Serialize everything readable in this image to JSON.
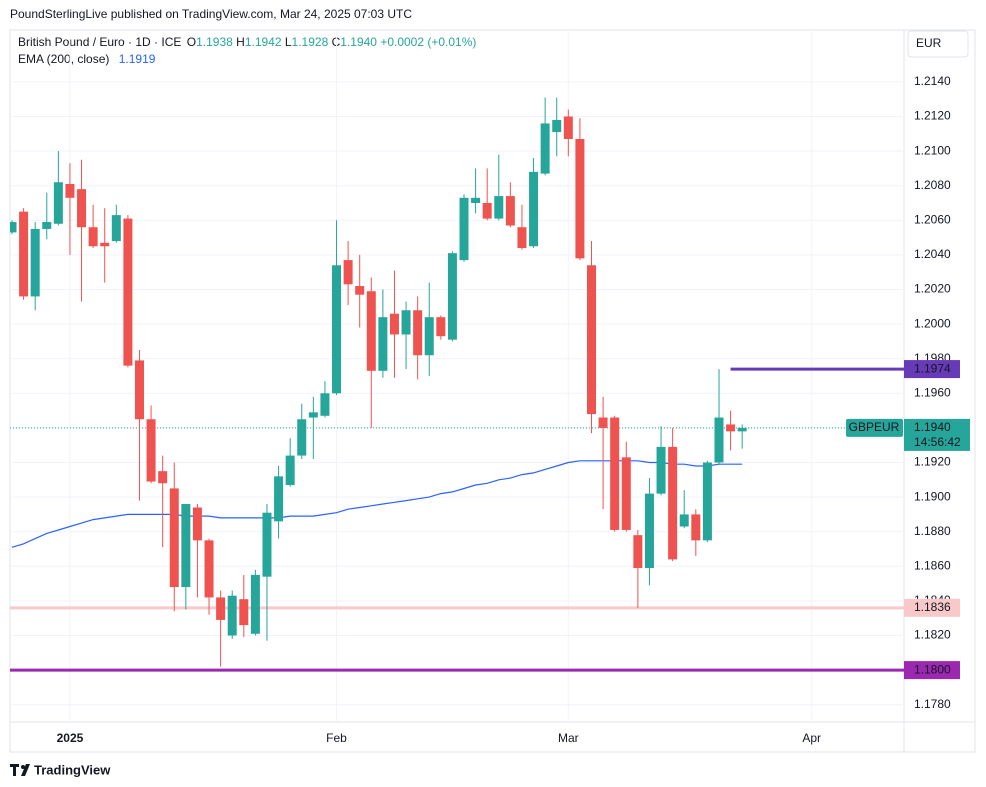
{
  "chart_data": {
    "type": "candlestick",
    "attribution": "PoundSterlingLive published on TradingView.com, Mar 24, 2025 07:03 UTC",
    "symbol_title": "British Pound / Euro · 1D · ICE",
    "ohlc_legend": [
      {
        "key": "O",
        "value": "1.1938"
      },
      {
        "key": "H",
        "value": "1.1942"
      },
      {
        "key": "L",
        "value": "1.1928"
      },
      {
        "key": "C",
        "value": "1.1940"
      }
    ],
    "change": "+0.0002 (+0.01%)",
    "currency": "EUR",
    "brand": "TradingView",
    "up_color": "#26a69a",
    "down_color": "#ef5350",
    "categories": [
      null,
      null,
      null,
      null,
      null,
      "2025",
      null,
      null,
      null,
      null,
      null,
      null,
      null,
      null,
      null,
      null,
      null,
      null,
      null,
      null,
      null,
      null,
      null,
      null,
      null,
      null,
      null,
      null,
      "Feb",
      null,
      null,
      null,
      null,
      null,
      null,
      null,
      null,
      null,
      null,
      null,
      null,
      null,
      null,
      null,
      null,
      null,
      null,
      null,
      "Mar",
      null,
      null,
      null,
      null,
      null,
      null,
      null,
      null,
      null,
      null,
      null,
      null,
      null,
      null,
      null,
      null,
      null,
      null,
      null,
      null,
      "Apr",
      null,
      null,
      null,
      null,
      null,
      null,
      null,
      null
    ],
    "open": [
      1.2053,
      1.2065,
      1.2016,
      1.2055,
      1.2058,
      1.2081,
      1.2078,
      1.2056,
      1.2047,
      1.2048,
      1.2061,
      1.1979,
      1.1945,
      1.1915,
      1.1905,
      1.1848,
      1.1894,
      1.1875,
      1.1842,
      1.182,
      1.1841,
      1.1821,
      1.1854,
      1.1886,
      1.1907,
      1.1924,
      1.1946,
      1.1947,
      1.196,
      1.2037,
      1.2022,
      1.2019,
      1.1973,
      1.2006,
      1.1994,
      1.2008,
      1.1982,
      1.2004,
      1.1991,
      1.2037,
      1.207,
      1.207,
      1.2061,
      1.2074,
      1.2056,
      1.2045,
      1.2087,
      1.2111,
      1.212,
      1.2107,
      1.2034,
      1.1946,
      1.1946,
      1.1923,
      1.1878,
      1.1859,
      1.1902,
      1.1929,
      1.1883,
      1.189,
      1.1875,
      1.192,
      1.1942,
      1.1938,
      null,
      null,
      null,
      null,
      null,
      null,
      null,
      null,
      null,
      null,
      null,
      null,
      null,
      null
    ],
    "high": [
      1.206,
      1.2067,
      1.2059,
      1.2076,
      1.21,
      1.2093,
      1.2095,
      1.2069,
      1.2067,
      1.2069,
      1.2063,
      1.1985,
      1.1953,
      1.1924,
      1.192,
      1.1896,
      1.1896,
      1.1876,
      1.1846,
      1.1846,
      1.1855,
      1.1858,
      1.1896,
      1.1918,
      1.1934,
      1.1954,
      1.1958,
      1.1967,
      1.206,
      1.2048,
      1.204,
      1.2027,
      1.202,
      1.2031,
      1.2013,
      1.2016,
      1.2024,
      1.2005,
      1.2042,
      1.2075,
      1.209,
      1.209,
      1.2098,
      1.2082,
      1.2069,
      1.2096,
      1.2131,
      1.2131,
      1.2124,
      1.2119,
      1.2048,
      1.1958,
      1.1947,
      1.1932,
      1.1881,
      1.1911,
      1.1941,
      1.194,
      1.1904,
      1.1893,
      1.1921,
      1.1974,
      1.195,
      1.1942,
      null,
      null,
      null,
      null,
      null,
      null,
      null,
      null,
      null,
      null,
      null,
      null,
      null,
      null
    ],
    "low": [
      1.2052,
      1.2014,
      1.2008,
      1.2049,
      1.2057,
      1.204,
      1.2013,
      1.2044,
      1.2024,
      1.2047,
      1.1975,
      1.1898,
      1.1908,
      1.1871,
      1.1834,
      1.1835,
      1.1842,
      1.1832,
      1.1802,
      1.1818,
      1.1819,
      1.182,
      1.1817,
      1.1876,
      1.1906,
      1.1922,
      1.1922,
      1.1946,
      1.1959,
      1.2011,
      1.1998,
      1.194,
      1.1969,
      1.1969,
      1.1974,
      1.1968,
      1.197,
      1.1991,
      1.199,
      1.2036,
      1.2064,
      1.206,
      1.206,
      1.2056,
      1.2043,
      1.2044,
      1.2086,
      1.2097,
      1.2097,
      1.2037,
      1.1937,
      1.1893,
      1.188,
      1.188,
      1.1836,
      1.1849,
      1.1901,
      1.1863,
      1.1882,
      1.1866,
      1.1874,
      1.1919,
      1.1927,
      1.1928,
      null,
      null,
      null,
      null,
      null,
      null,
      null,
      null,
      null,
      null,
      null,
      null,
      null,
      null
    ],
    "close": [
      1.2059,
      1.2016,
      1.2055,
      1.2059,
      1.2082,
      1.2073,
      1.2056,
      1.2045,
      1.2045,
      1.2063,
      1.1976,
      1.1945,
      1.1909,
      1.1908,
      1.1848,
      1.1896,
      1.1875,
      1.1842,
      1.1829,
      1.1843,
      1.1826,
      1.1855,
      1.1891,
      1.1912,
      1.1924,
      1.1945,
      1.1949,
      1.196,
      1.2034,
      1.2023,
      1.2017,
      1.1973,
      1.2004,
      1.1994,
      1.2008,
      1.1982,
      1.2004,
      1.1993,
      1.2041,
      1.2073,
      1.2073,
      1.2061,
      1.2074,
      1.2057,
      1.2044,
      1.2088,
      1.2116,
      1.2118,
      1.2107,
      1.2038,
      1.1948,
      1.194,
      1.1881,
      1.1881,
      1.1859,
      1.1902,
      1.1929,
      1.1864,
      1.189,
      1.1875,
      1.192,
      1.1946,
      1.1938,
      1.194,
      null,
      null,
      null,
      null,
      null,
      null,
      null,
      null,
      null,
      null,
      null,
      null,
      null,
      null
    ],
    "ema": {
      "name": "EMA (200, close)",
      "legend_value": "1.1919",
      "color": "#2962ff",
      "values": [
        1.1871,
        1.1873,
        1.1876,
        1.1879,
        1.1881,
        1.1883,
        1.1885,
        1.1887,
        1.1888,
        1.1889,
        1.189,
        1.189,
        1.189,
        1.189,
        1.189,
        1.1889,
        1.1889,
        1.1889,
        1.1888,
        1.1888,
        1.1888,
        1.1888,
        1.1888,
        1.1888,
        1.1889,
        1.1889,
        1.1889,
        1.189,
        1.1891,
        1.1893,
        1.1894,
        1.1895,
        1.1896,
        1.1897,
        1.1898,
        1.1899,
        1.19,
        1.1902,
        1.1903,
        1.1905,
        1.1907,
        1.1908,
        1.191,
        1.1911,
        1.1913,
        1.1914,
        1.1916,
        1.1918,
        1.192,
        1.1921,
        1.1921,
        1.1921,
        1.1921,
        1.1921,
        1.1921,
        1.192,
        1.192,
        1.1919,
        1.1919,
        1.1918,
        1.1918,
        1.1919,
        1.1919,
        1.1919,
        null,
        null,
        null,
        null,
        null,
        null,
        null,
        null,
        null,
        null,
        null,
        null,
        null,
        null
      ]
    },
    "levels": [
      {
        "value": 1.1974,
        "label": "1.1974",
        "color": "#673ab7",
        "text_color": "#ffffff",
        "start_index": 62
      },
      {
        "value": 1.1836,
        "label": "1.1836",
        "color": "#f9c9c9",
        "text_color": "#131722"
      },
      {
        "value": 1.18,
        "label": "1.1800",
        "color": "#9c27b0",
        "text_color": "#ffffff"
      }
    ],
    "last_price": {
      "value": 1.194,
      "label": "1.1940",
      "symbol": "GBPEUR",
      "countdown": "14:56:42",
      "color": "#26a69a"
    },
    "ylim": [
      1.177,
      1.217
    ],
    "yticks": [
      {
        "value": 1.178,
        "label": "1.1780"
      },
      {
        "value": 1.18,
        "label": "1.1800"
      },
      {
        "value": 1.182,
        "label": "1.1820"
      },
      {
        "value": 1.184,
        "label": "1.1840"
      },
      {
        "value": 1.186,
        "label": "1.1860"
      },
      {
        "value": 1.188,
        "label": "1.1880"
      },
      {
        "value": 1.19,
        "label": "1.1900"
      },
      {
        "value": 1.192,
        "label": "1.1920"
      },
      {
        "value": 1.194,
        "label": "1.1940"
      },
      {
        "value": 1.196,
        "label": "1.1960"
      },
      {
        "value": 1.198,
        "label": "1.1980"
      },
      {
        "value": 1.2,
        "label": "1.2000"
      },
      {
        "value": 1.202,
        "label": "1.2020"
      },
      {
        "value": 1.204,
        "label": "1.2040"
      },
      {
        "value": 1.206,
        "label": "1.2060"
      },
      {
        "value": 1.208,
        "label": "1.2080"
      },
      {
        "value": 1.21,
        "label": "1.2100"
      },
      {
        "value": 1.212,
        "label": "1.2120"
      },
      {
        "value": 1.214,
        "label": "1.2140"
      }
    ],
    "grid": true
  }
}
